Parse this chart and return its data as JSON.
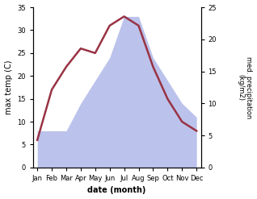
{
  "months": [
    "Jan",
    "Feb",
    "Mar",
    "Apr",
    "May",
    "Jun",
    "Jul",
    "Aug",
    "Sep",
    "Oct",
    "Nov",
    "Dec"
  ],
  "temp_C": [
    6,
    17,
    22,
    26,
    25,
    31,
    33,
    31,
    22,
    15,
    10,
    8
  ],
  "precip_kg": [
    8,
    8,
    8,
    14,
    19,
    24,
    33,
    33,
    24,
    19,
    14,
    11
  ],
  "temp_ylim": [
    0,
    35
  ],
  "precip_ylim": [
    0,
    25
  ],
  "temp_color": "#993344",
  "precip_fill_color": "#b0b8e8",
  "precip_fill_alpha": 0.85,
  "bg_color": "#ffffff",
  "temp_linewidth": 1.8,
  "xlabel": "date (month)",
  "ylabel_left": "max temp (C)",
  "ylabel_right": "med. precipitation\n(kg/m2)",
  "yticks_left": [
    0,
    5,
    10,
    15,
    20,
    25,
    30,
    35
  ],
  "yticks_right": [
    0,
    5,
    10,
    15,
    20,
    25
  ],
  "fig_width": 3.18,
  "fig_height": 2.47,
  "dpi": 100
}
